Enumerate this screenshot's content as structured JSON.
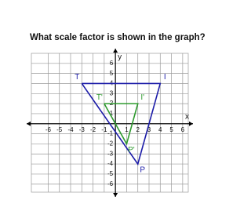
{
  "chart_data": {
    "type": "polygon",
    "title": "What scale factor is shown in the graph?",
    "x_label": "x",
    "y_label": "y",
    "xlim": [
      -7.5,
      6.5
    ],
    "ylim": [
      -6.8,
      7
    ],
    "xticks": [
      -6,
      -5,
      -4,
      -3,
      -2,
      -1,
      1,
      2,
      3,
      4,
      5,
      6
    ],
    "yticks": [
      6,
      5,
      4,
      3,
      2,
      1,
      -1,
      -2,
      -3,
      -4,
      -5,
      -6
    ],
    "grid": true,
    "series": [
      {
        "color": "#1c1ca8",
        "x": [
          -3,
          4,
          2
        ],
        "y": [
          4,
          4,
          -4
        ],
        "vertex_labels": [
          "T",
          "I",
          "P"
        ]
      },
      {
        "color": "#2e9a2e",
        "x": [
          -1,
          2,
          1
        ],
        "y": [
          2,
          2,
          -2
        ],
        "vertex_labels": [
          "T'",
          "I'",
          "P'"
        ]
      }
    ]
  }
}
